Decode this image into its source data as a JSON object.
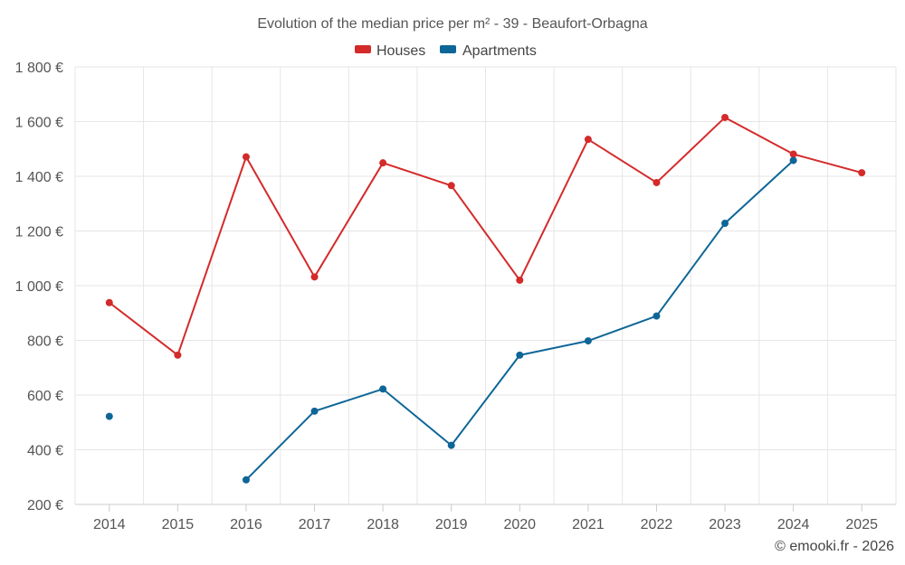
{
  "chart_data": {
    "type": "line",
    "title": "Evolution of the median price per m² - 39 - Beaufort-Orbagna",
    "categories": [
      "2014",
      "2015",
      "2016",
      "2017",
      "2018",
      "2019",
      "2020",
      "2021",
      "2022",
      "2023",
      "2024",
      "2025"
    ],
    "series": [
      {
        "name": "Houses",
        "color": "#d42a2a",
        "values": [
          938,
          746,
          1471,
          1032,
          1449,
          1366,
          1020,
          1535,
          1377,
          1615,
          1481,
          1413
        ]
      },
      {
        "name": "Apartments",
        "color": "#0e6697",
        "values": [
          522,
          null,
          290,
          541,
          622,
          416,
          746,
          798,
          889,
          1228,
          1458,
          null
        ]
      }
    ],
    "ylim": [
      200,
      1800
    ],
    "yticks": [
      200,
      400,
      600,
      800,
      1000,
      1200,
      1400,
      1600,
      1800
    ],
    "ytick_labels": [
      "200 €",
      "400 €",
      "600 €",
      "800 €",
      "1 000 €",
      "1 200 €",
      "1 400 €",
      "1 600 €",
      "1 800 €"
    ],
    "legend_position": "top-center",
    "grid": true
  },
  "credit": "© emooki.fr - 2026"
}
